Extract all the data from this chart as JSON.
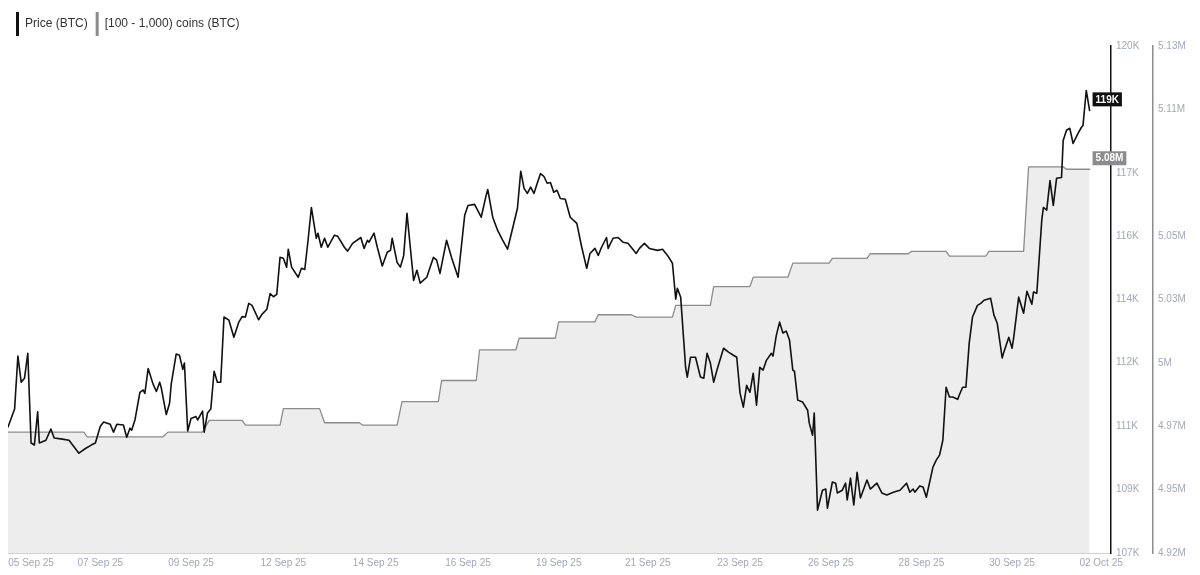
{
  "chart_data": {
    "type": "line",
    "xlim": [
      "--09-05T08:00",
      "--10-03T05:00"
    ],
    "xticks": [
      {
        "value": "--09-05T22:00",
        "label": "05 Sep 25"
      },
      {
        "value": "--09-07T16:00",
        "label": "07 Sep 25"
      },
      {
        "value": "--09-09T23:00",
        "label": "09 Sep 25"
      },
      {
        "value": "--09-12T07:00",
        "label": "12 Sep 25"
      },
      {
        "value": "--09-14T15:00",
        "label": "14 Sep 25"
      },
      {
        "value": "--09-16T23:00",
        "label": "16 Sep 25"
      },
      {
        "value": "--09-19T06:00",
        "label": "19 Sep 25"
      },
      {
        "value": "--09-21T12:00",
        "label": "21 Sep 25"
      },
      {
        "value": "--09-23T20:00",
        "label": "23 Sep 25"
      },
      {
        "value": "--09-26T03:00",
        "label": "26 Sep 25"
      },
      {
        "value": "--09-28T10:00",
        "label": "28 Sep 25"
      },
      {
        "value": "--09-30T17:00",
        "label": "30 Sep 25"
      },
      {
        "value": "--10-02T23:00",
        "label": "02 Oct 25"
      }
    ],
    "ylim": [
      107.4,
      120.4
    ],
    "yticks": [
      {
        "value": 107.4,
        "label": "107K"
      },
      {
        "value": 109.03,
        "label": "109K"
      },
      {
        "value": 110.65,
        "label": "111K"
      },
      {
        "value": 112.28,
        "label": "112K"
      },
      {
        "value": 113.9,
        "label": "114K"
      },
      {
        "value": 115.53,
        "label": "116K"
      },
      {
        "value": 117.15,
        "label": "117K"
      },
      {
        "value": 120.4,
        "label": "120K"
      }
    ],
    "y2lim": [
      4.9185,
      5.1345
    ],
    "y2ticks": [
      {
        "value": 4.9185,
        "label": "4.92M"
      },
      {
        "value": 4.9455,
        "label": "4.95M"
      },
      {
        "value": 4.9725,
        "label": "4.97M"
      },
      {
        "value": 4.9995,
        "label": "5M"
      },
      {
        "value": 5.0265,
        "label": "5.03M"
      },
      {
        "value": 5.0535,
        "label": "5.05M"
      },
      {
        "value": 5.1075,
        "label": "5.11M"
      },
      {
        "value": 5.1345,
        "label": "5.13M"
      }
    ],
    "legend": "top left",
    "series": [
      {
        "name": "Price (BTC)",
        "type": "line",
        "color": "#111111",
        "x": [
          "--09-05T08:00",
          "--09-05T12:00",
          "--09-05T14:00",
          "--09-05T16:00",
          "--09-05T18:00",
          "--09-05T20:00",
          "--09-05T22:00",
          "--09-06T00:00",
          "--09-06T02:00",
          "--09-06T03:00",
          "--09-06T07:00",
          "--09-06T10:00",
          "--09-06T12:00",
          "--09-06T17:00",
          "--09-06T21:00",
          "--09-07T03:00",
          "--09-07T07:00",
          "--09-07T11:00",
          "--09-07T13:00",
          "--09-07T16:00",
          "--09-07T18:00",
          "--09-07T22:00",
          "--09-08T00:00",
          "--09-08T02:00",
          "--09-08T06:00",
          "--09-08T08:00",
          "--09-08T10:00",
          "--09-08T11:00",
          "--09-08T13:00",
          "--09-08T16:00",
          "--09-08T18:00",
          "--09-08T19:00",
          "--09-08T21:00",
          "--09-09T00:00",
          "--09-09T02:00",
          "--09-09T04:00",
          "--09-09T05:00",
          "--09-09T08:00",
          "--09-09T10:00",
          "--09-09T11:00",
          "--09-09T14:00",
          "--09-09T16:00",
          "--09-09T18:00",
          "--09-09T19:00",
          "--09-09T21:00",
          "--09-09T23:00",
          "--09-10T02:00",
          "--09-10T03:00",
          "--09-10T06:00",
          "--09-10T07:00",
          "--09-10T09:00",
          "--09-10T11:00",
          "--09-10T13:00",
          "--09-10T15:00",
          "--09-10T17:00",
          "--09-10T19:00",
          "--09-10T22:00",
          "--09-11T01:00",
          "--09-11T04:00",
          "--09-11T06:00",
          "--09-11T08:00",
          "--09-11T10:00",
          "--09-11T12:00",
          "--09-11T16:00",
          "--09-11T18:00",
          "--09-11T21:00",
          "--09-11T23:00",
          "--09-12T01:00",
          "--09-12T03:00",
          "--09-12T05:00",
          "--09-12T07:00",
          "--09-12T09:00",
          "--09-12T10:00",
          "--09-12T12:00",
          "--09-12T16:00",
          "--09-12T18:00",
          "--09-12T20:00",
          "--09-12T22:00",
          "--09-13T00:00",
          "--09-13T03:00",
          "--09-13T04:00",
          "--09-13T06:00",
          "--09-13T08:00",
          "--09-13T10:00",
          "--09-13T14:00",
          "--09-13T16:00",
          "--09-13T20:00",
          "--09-13T22:00",
          "--09-14T01:00",
          "--09-14T06:00",
          "--09-14T08:00",
          "--09-14T10:00",
          "--09-14T11:00",
          "--09-14T14:00",
          "--09-14T16:00",
          "--09-14T19:00",
          "--09-14T22:00",
          "--09-15T00:00",
          "--09-15T01:00",
          "--09-15T04:00",
          "--09-15T06:00",
          "--09-15T08:00",
          "--09-15T10:00",
          "--09-15T12:00",
          "--09-15T14:00",
          "--09-15T16:00",
          "--09-15T18:00",
          "--09-15T22:00",
          "--09-16T02:00",
          "--09-16T04:00",
          "--09-16T06:00",
          "--09-16T10:00",
          "--09-16T13:00",
          "--09-16T17:00",
          "--09-16T21:00",
          "--09-16T23:00",
          "--09-17T03:00",
          "--09-17T07:00",
          "--09-17T10:00",
          "--09-17T11:00",
          "--09-17T14:00",
          "--09-17T17:00",
          "--09-17T20:00",
          "--09-17T23:00",
          "--09-18T05:00",
          "--09-18T07:00",
          "--09-18T09:00",
          "--09-18T11:00",
          "--09-18T13:00",
          "--09-18T15:00",
          "--09-18T17:00",
          "--09-18T19:00",
          "--09-18T21:00",
          "--09-18T23:00",
          "--09-19T01:00",
          "--09-19T03:00",
          "--09-19T05:00",
          "--09-19T07:00",
          "--09-19T10:00",
          "--09-19T13:00",
          "--09-19T17:00",
          "--09-19T20:00",
          "--09-19T23:00",
          "--09-20T01:00",
          "--09-20T04:00",
          "--09-20T06:00",
          "--09-20T08:00",
          "--09-20T11:00",
          "--09-20T12:00",
          "--09-20T15:00",
          "--09-20T18:00",
          "--09-20T21:00",
          "--09-21T00:00",
          "--09-21T02:00",
          "--09-21T05:00",
          "--09-21T07:00",
          "--09-21T10:00",
          "--09-21T13:00",
          "--09-21T18:00",
          "--09-21T21:00",
          "--09-22T00:00",
          "--09-22T03:00",
          "--09-22T05:00",
          "--09-22T06:00",
          "--09-22T08:00",
          "--09-22T11:00",
          "--09-22T12:00",
          "--09-22T14:00",
          "--09-22T17:00",
          "--09-22T20:00",
          "--09-22T22:00",
          "--09-23T00:00",
          "--09-23T02:00",
          "--09-23T04:00",
          "--09-23T06:00",
          "--09-23T10:00",
          "--09-23T13:00",
          "--09-23T16:00",
          "--09-23T18:00",
          "--09-23T20:00",
          "--09-23T22:00",
          "--09-24T00:00",
          "--09-24T02:00",
          "--09-24T04:00",
          "--09-24T06:00",
          "--09-24T08:00",
          "--09-24T10:00",
          "--09-24T12:00",
          "--09-24T15:00",
          "--09-24T16:00",
          "--09-24T18:00",
          "--09-24T20:00",
          "--09-24T22:00",
          "--09-25T00:00",
          "--09-25T02:00",
          "--09-25T04:00",
          "--09-25T05:00",
          "--09-25T07:00",
          "--09-25T10:00",
          "--09-25T13:00",
          "--09-25T14:00",
          "--09-25T16:00",
          "--09-25T17:00",
          "--09-25T19:00",
          "--09-25T22:00",
          "--09-26T00:00",
          "--09-26T01:00",
          "--09-26T04:00",
          "--09-26T06:00",
          "--09-26T07:00",
          "--09-26T10:00",
          "--09-26T12:00",
          "--09-26T13:00",
          "--09-26T15:00",
          "--09-26T17:00",
          "--09-26T19:00",
          "--09-26T21:00",
          "--09-27T01:00",
          "--09-27T03:00",
          "--09-27T07:00",
          "--09-27T10:00",
          "--09-27T13:00",
          "--09-27T17:00",
          "--09-27T21:00",
          "--09-28T01:00",
          "--09-28T03:00",
          "--09-28T05:00",
          "--09-28T06:00",
          "--09-28T09:00",
          "--09-28T11:00",
          "--09-28T13:00",
          "--09-28T17:00",
          "--09-28T19:00",
          "--09-28T21:00",
          "--09-28T23:00",
          "--09-29T01:00",
          "--09-29T03:00",
          "--09-29T05:00",
          "--09-29T08:00",
          "--09-29T09:00",
          "--09-29T11:00",
          "--09-29T13:00",
          "--09-29T15:00",
          "--09-29T17:00",
          "--09-29T20:00",
          "--09-29T22:00",
          "--09-30T00:00",
          "--09-30T04:00",
          "--09-30T06:00",
          "--09-30T08:00",
          "--09-30T11:00",
          "--09-30T12:00",
          "--09-30T15:00",
          "--09-30T17:00",
          "--09-30T18:00",
          "--09-30T21:00",
          "--10-01T00:00",
          "--10-01T02:00",
          "--10-01T05:00",
          "--10-01T06:00",
          "--10-01T08:00",
          "--10-01T11:00",
          "--10-01T12:00",
          "--10-01T14:00",
          "--10-01T16:00",
          "--10-01T18:00",
          "--10-01T20:00",
          "--10-01T23:00",
          "--10-02T00:00",
          "--10-02T02:00",
          "--10-02T04:00",
          "--10-02T06:00",
          "--10-02T09:00",
          "--10-02T11:00",
          "--10-02T12:00",
          "--10-02T14:00",
          "--10-02T16:00"
        ],
        "values": [
          110.63,
          111.09,
          112.45,
          111.78,
          111.88,
          112.52,
          110.22,
          110.17,
          111.02,
          110.22,
          110.29,
          110.58,
          110.35,
          110.32,
          110.29,
          109.96,
          110.08,
          110.18,
          110.22,
          110.65,
          110.76,
          110.7,
          110.5,
          110.7,
          110.68,
          110.37,
          110.6,
          110.55,
          110.81,
          111.52,
          111.58,
          111.49,
          112.13,
          111.73,
          111.54,
          111.78,
          111.63,
          110.95,
          111.24,
          111.73,
          112.5,
          112.47,
          112.11,
          112.27,
          110.53,
          110.85,
          110.9,
          110.81,
          111.04,
          110.5,
          110.99,
          111.09,
          112.06,
          111.78,
          111.78,
          113.45,
          113.37,
          112.93,
          113.32,
          113.46,
          113.45,
          113.8,
          113.75,
          113.38,
          113.52,
          113.65,
          114.05,
          113.97,
          114.03,
          114.98,
          114.96,
          114.73,
          115.19,
          114.73,
          114.47,
          114.7,
          114.67,
          115.42,
          116.26,
          115.47,
          115.6,
          115.24,
          115.47,
          115.24,
          115.55,
          115.52,
          115.24,
          115.14,
          115.34,
          115.49,
          115.21,
          115.42,
          115.37,
          115.6,
          115.24,
          114.76,
          115.11,
          115.16,
          115.47,
          114.85,
          114.73,
          115.03,
          116.11,
          115.24,
          114.39,
          114.65,
          114.32,
          114.47,
          114.98,
          114.91,
          114.57,
          115.42,
          114.98,
          114.47,
          116.06,
          116.31,
          116.34,
          116.01,
          116.57,
          116.72,
          116.01,
          115.67,
          115.42,
          115.19,
          116.24,
          117.19,
          116.75,
          116.62,
          116.78,
          116.62,
          116.88,
          117.13,
          117.06,
          116.88,
          116.9,
          116.65,
          116.7,
          116.49,
          116.47,
          116.01,
          115.85,
          115.24,
          114.7,
          115.08,
          115.21,
          115.03,
          115.24,
          115.49,
          115.21,
          115.47,
          115.49,
          115.37,
          115.34,
          115.24,
          115.08,
          115.21,
          115.34,
          115.21,
          115.16,
          115.19,
          115.03,
          114.83,
          113.91,
          114.19,
          113.96,
          112.15,
          111.91,
          112.42,
          112.42,
          111.91,
          111.88,
          112.52,
          112.27,
          111.78,
          112.09,
          112.65,
          112.55,
          112.47,
          112.42,
          111.5,
          111.14,
          111.7,
          111.52,
          112.01,
          111.19,
          112.16,
          112.09,
          112.34,
          112.52,
          112.45,
          112.98,
          113.32,
          113.04,
          113.09,
          112.86,
          112.09,
          112.06,
          111.32,
          111.27,
          111.06,
          110.73,
          110.42,
          110.99,
          108.5,
          109.01,
          109.04,
          108.55,
          109.22,
          109.19,
          108.94,
          109.01,
          109.19,
          108.76,
          109.32,
          108.63,
          109.47,
          108.81,
          109.27,
          109.04,
          109.19,
          108.94,
          108.89,
          108.96,
          109.01,
          109.19,
          108.96,
          109.04,
          108.96,
          109.12,
          109.09,
          108.83,
          109.6,
          109.78,
          109.91,
          110.29,
          111.65,
          111.4,
          111.4,
          111.34,
          111.45,
          111.65,
          111.65,
          112.78,
          113.45,
          113.75,
          113.8,
          113.88,
          113.93,
          113.5,
          113.29,
          112.4,
          112.55,
          112.93,
          112.65,
          112.93,
          113.96,
          113.55,
          114.11,
          113.78,
          114.09,
          114.06,
          115.93,
          116.26,
          116.19,
          116.95,
          116.31,
          117.01,
          117.03,
          117.98,
          118.24,
          118.29,
          117.9,
          118.16,
          118.31,
          118.36,
          119.26,
          118.75
        ],
        "value_labels": [
          null,
          null,
          null,
          null,
          null,
          null,
          null,
          null,
          null,
          null,
          null,
          null,
          null,
          null,
          null,
          null,
          null,
          null,
          null,
          null,
          null,
          null,
          null,
          null,
          null,
          null,
          null,
          null,
          null,
          null,
          null,
          null,
          null,
          null,
          null,
          null,
          null,
          null,
          null,
          null,
          null,
          null,
          null,
          null,
          null,
          null,
          null,
          null,
          null,
          null,
          null,
          null,
          null,
          null,
          null,
          null,
          null,
          null,
          null,
          null,
          null,
          null,
          null,
          null,
          null,
          null,
          null,
          null,
          null,
          null,
          null,
          null,
          null,
          null,
          null,
          null,
          null,
          null,
          null,
          null,
          null,
          null,
          null,
          null,
          null,
          null,
          null,
          null,
          null,
          null,
          null,
          null,
          null,
          null,
          null,
          null,
          null,
          null,
          null,
          null,
          null,
          null,
          null,
          null,
          null,
          null,
          null,
          null,
          null,
          null,
          null,
          null,
          null,
          null,
          null,
          null,
          null,
          null,
          null,
          null,
          null,
          null,
          null,
          null,
          null,
          null,
          null,
          null,
          null,
          null,
          null,
          null,
          null,
          null,
          null,
          null,
          null,
          null,
          null,
          null,
          null,
          null,
          null,
          null,
          null,
          null,
          null,
          null,
          null,
          null,
          null,
          null,
          null,
          null,
          null,
          null,
          null,
          null,
          null,
          null,
          null,
          null,
          null,
          null,
          null,
          null,
          null,
          null,
          null,
          null,
          null,
          null,
          null,
          null,
          null,
          null,
          null,
          null,
          null,
          null,
          null,
          null,
          null,
          null,
          null,
          null,
          null,
          null,
          null,
          null,
          null,
          null,
          null,
          null,
          null,
          null,
          null,
          null,
          null,
          null,
          null,
          null,
          null,
          null,
          null,
          null,
          null,
          null,
          null,
          null,
          null,
          null,
          null,
          null,
          null,
          null,
          null,
          null,
          null,
          null,
          null,
          null,
          null,
          null,
          null,
          null,
          null,
          null,
          null,
          null,
          null,
          null,
          null,
          null,
          null,
          null,
          null,
          null,
          null,
          null,
          null,
          null,
          null,
          null,
          null,
          null,
          null,
          null,
          null,
          null,
          null,
          null,
          null,
          null,
          null,
          null,
          null,
          null,
          null,
          null,
          null,
          null,
          null,
          null,
          null,
          null,
          null,
          null,
          null,
          null,
          null,
          null,
          null,
          null,
          null,
          null,
          "119K"
        ]
      },
      {
        "name": "[100 - 1,000) coins (BTC)",
        "type": "area",
        "axis": "y2",
        "color": "#8c8c8c",
        "x": [
          "--09-05T08:00",
          "--09-07T06:00",
          "--09-07T08:00",
          "--09-09T06:00",
          "--09-09T09:00",
          "--09-10T06:00",
          "--09-10T10:00",
          "--09-11T06:00",
          "--09-11T08:00",
          "--09-12T05:00",
          "--09-12T07:00",
          "--09-13T05:00",
          "--09-13T08:00",
          "--09-14T05:00",
          "--09-14T07:00",
          "--09-15T04:00",
          "--09-15T07:00",
          "--09-16T05:00",
          "--09-16T07:00",
          "--09-17T04:00",
          "--09-17T06:00",
          "--09-18T04:00",
          "--09-18T06:00",
          "--09-19T04:00",
          "--09-19T06:00",
          "--09-20T04:00",
          "--09-20T06:00",
          "--09-21T02:00",
          "--09-21T05:00",
          "--09-22T03:00",
          "--09-22T05:00",
          "--09-23T02:00",
          "--09-23T04:00",
          "--09-24T02:00",
          "--09-24T04:00",
          "--09-25T01:00",
          "--09-25T04:00",
          "--09-26T02:00",
          "--09-26T04:00",
          "--09-27T01:00",
          "--09-27T03:00",
          "--09-28T02:00",
          "--09-28T04:00",
          "--09-29T01:00",
          "--09-29T03:00",
          "--09-30T01:00",
          "--09-30T03:00",
          "--10-01T00:00",
          "--10-01T03:00",
          "--10-02T00:00",
          "--10-02T02:00",
          "--10-02T16:00"
        ],
        "values": [
          4.97,
          4.97,
          4.968,
          4.968,
          4.97,
          4.97,
          4.975,
          4.975,
          4.973,
          4.973,
          4.98,
          4.98,
          4.974,
          4.974,
          4.973,
          4.973,
          4.983,
          4.983,
          4.992,
          4.992,
          5.005,
          5.005,
          5.01,
          5.01,
          5.017,
          5.017,
          5.02,
          5.02,
          5.019,
          5.019,
          5.024,
          5.024,
          5.032,
          5.032,
          5.036,
          5.036,
          5.042,
          5.042,
          5.044,
          5.044,
          5.046,
          5.046,
          5.047,
          5.047,
          5.045,
          5.045,
          5.047,
          5.047,
          5.083,
          5.083,
          5.082,
          5.082
        ],
        "value_labels": [
          null,
          null,
          null,
          null,
          null,
          null,
          null,
          null,
          null,
          null,
          null,
          null,
          null,
          null,
          null,
          null,
          null,
          null,
          null,
          null,
          null,
          null,
          null,
          null,
          null,
          null,
          null,
          null,
          null,
          null,
          null,
          null,
          null,
          null,
          null,
          null,
          null,
          null,
          null,
          null,
          null,
          null,
          null,
          null,
          null,
          null,
          null,
          null,
          null,
          null,
          null,
          "5.08M"
        ]
      }
    ]
  }
}
